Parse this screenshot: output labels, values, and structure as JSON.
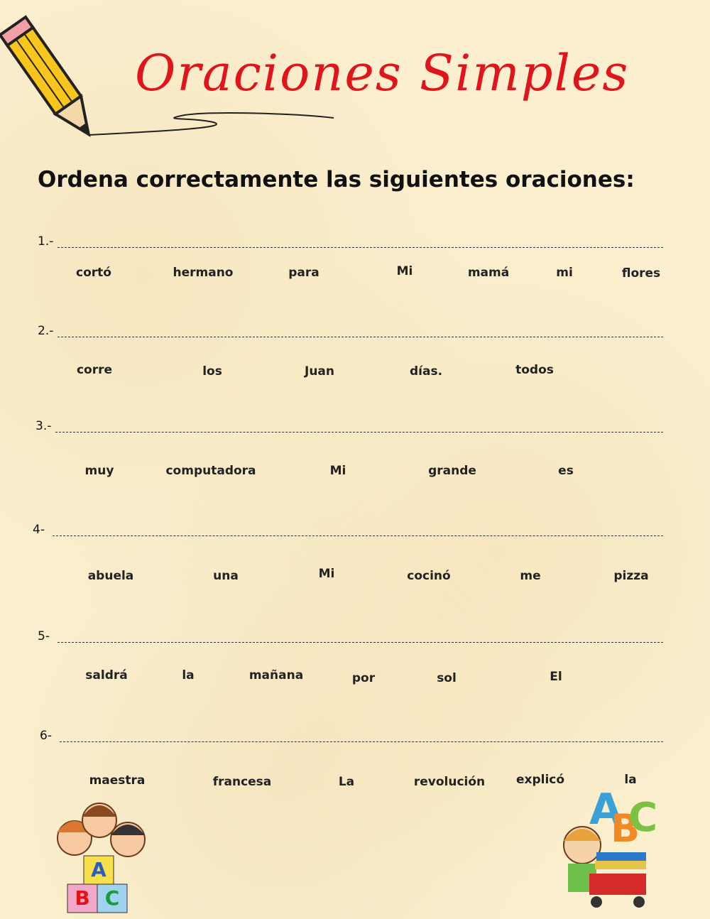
{
  "header": {
    "title": "Oraciones Simples",
    "instruction": "Ordena correctamente las siguientes oraciones:"
  },
  "items": [
    {
      "label": "1.-",
      "words": [
        "cortó",
        "hermano",
        "para",
        "Mi",
        "mamá",
        "mi",
        "flores"
      ]
    },
    {
      "label": "2.-",
      "words": [
        "corre",
        "los",
        "Juan",
        "días.",
        "todos"
      ]
    },
    {
      "label": "3.-",
      "words": [
        "muy",
        "computadora",
        "Mi",
        "grande",
        "es"
      ]
    },
    {
      "label": "4-",
      "words": [
        "abuela",
        "una",
        "Mi",
        "cocinó",
        "me",
        "pizza"
      ]
    },
    {
      "label": "5-",
      "words": [
        "saldrá",
        "la",
        "mañana",
        "por",
        "sol",
        "El"
      ]
    },
    {
      "label": "6-",
      "words": [
        "maestra",
        "francesa",
        "La",
        "revolución",
        "explicó",
        "la"
      ]
    }
  ]
}
